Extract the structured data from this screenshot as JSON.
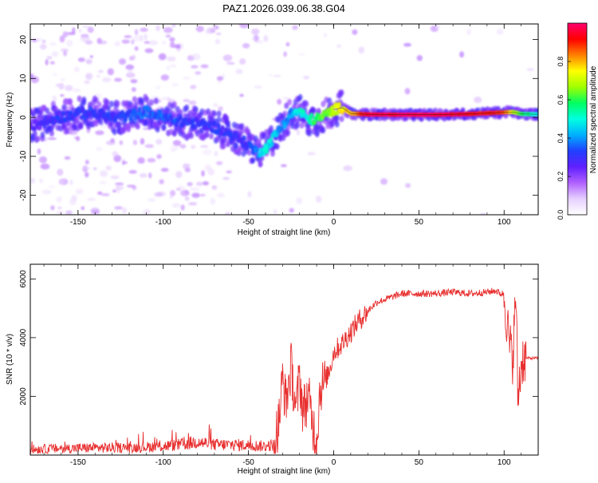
{
  "title": "PAZ1.2026.039.06.38.G04",
  "chart_data": [
    {
      "type": "heatmap",
      "xlabel": "Height of straight line (km)",
      "ylabel": "Frequency (Hz)",
      "xlim": [
        -178,
        120
      ],
      "ylim": [
        -25,
        24
      ],
      "xticks": [
        -150,
        -100,
        -50,
        0,
        50,
        100
      ],
      "yticks": [
        -20,
        -10,
        0,
        10,
        20
      ],
      "colorbar": {
        "label": "Normalized spectral amplitude",
        "range": [
          0,
          1
        ],
        "ticks": [
          "0.0",
          "0.2",
          "0.4",
          "0.6",
          "0.8"
        ],
        "colors": [
          "#ffffff",
          "#e6d0ff",
          "#b060ff",
          "#6020ff",
          "#2040ff",
          "#00b0ff",
          "#00ffe0",
          "#00ff60",
          "#a0ff00",
          "#ffff00",
          "#ff8000",
          "#ff0000",
          "#ff0070"
        ]
      },
      "ridge": {
        "x": [
          -175,
          -160,
          -150,
          -140,
          -130,
          -120,
          -110,
          -100,
          -90,
          -80,
          -70,
          -60,
          -50,
          -45,
          -40,
          -35,
          -30,
          -25,
          -20,
          -15,
          -10,
          -5,
          0,
          5,
          10,
          20,
          40,
          60,
          80,
          100,
          105,
          110,
          120
        ],
        "y": [
          -2,
          0,
          1,
          1,
          0,
          0.5,
          1.5,
          0,
          -1,
          -1.5,
          -2.5,
          -4.5,
          -7,
          -9,
          -8,
          -5,
          -2,
          1,
          1.5,
          -0.5,
          -0.5,
          0.5,
          2,
          2.5,
          1,
          0.8,
          0.7,
          0.7,
          0.9,
          1.3,
          1.4,
          0.9,
          0.8
        ],
        "amplitude": [
          0.25,
          0.3,
          0.3,
          0.32,
          0.3,
          0.32,
          0.35,
          0.35,
          0.32,
          0.3,
          0.3,
          0.3,
          0.3,
          0.38,
          0.5,
          0.45,
          0.38,
          0.4,
          0.5,
          0.5,
          0.6,
          0.62,
          0.68,
          0.75,
          0.8,
          0.95,
          0.97,
          0.96,
          0.93,
          0.9,
          0.72,
          0.6,
          0.5
        ]
      }
    },
    {
      "type": "line",
      "xlabel": "Height of straight line (km)",
      "ylabel": "SNR (10 * v/v)",
      "xlim": [
        -178,
        120
      ],
      "ylim": [
        0,
        6500
      ],
      "xticks": [
        -150,
        -100,
        -50,
        0,
        50,
        100
      ],
      "yticks": [
        2000,
        4000,
        6000
      ],
      "color": "#e83030",
      "series": [
        {
          "x": [
            -178,
            -160,
            -140,
            -120,
            -100,
            -90,
            -80,
            -70,
            -60,
            -50,
            -40,
            -35,
            -32,
            -30,
            -28,
            -25,
            -22,
            -20,
            -18,
            -15,
            -12,
            -10,
            -8,
            -5,
            -2,
            0,
            5,
            10,
            15,
            20,
            25,
            30,
            40,
            50,
            60,
            70,
            80,
            90,
            95,
            98,
            100,
            103,
            105,
            107,
            108,
            110,
            111,
            113,
            120
          ],
          "y": [
            200,
            220,
            250,
            250,
            300,
            350,
            450,
            350,
            350,
            330,
            300,
            350,
            1200,
            2600,
            1800,
            3000,
            1500,
            2700,
            1500,
            2000,
            1000,
            500,
            2300,
            2500,
            3000,
            3500,
            3800,
            4200,
            4600,
            4900,
            5200,
            5300,
            5500,
            5500,
            5500,
            5550,
            5500,
            5550,
            5600,
            5500,
            5500,
            3800,
            3300,
            5500,
            2000,
            3000,
            3300,
            3300,
            3300
          ]
        }
      ]
    }
  ]
}
